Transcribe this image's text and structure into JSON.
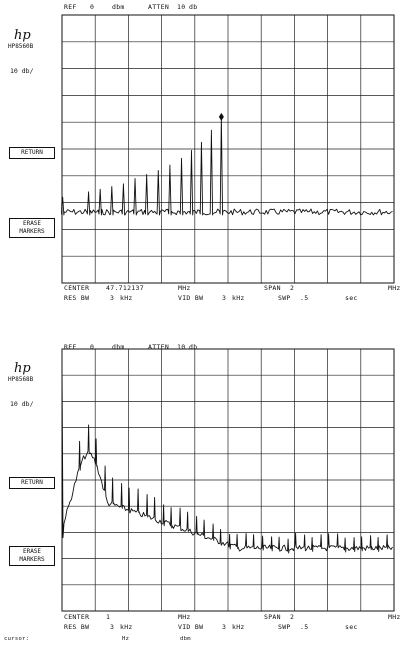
{
  "screens": [
    {
      "ref_label": "REF",
      "ref_value": "0",
      "ref_unit": "dbm",
      "atten_label": "ATTEN",
      "atten_value": "10",
      "atten_unit": "db",
      "logo": "hp",
      "model": "HP8560B",
      "scale": "10 db/",
      "softkeys": [
        {
          "label": "RETURN"
        },
        {
          "label": "ERASE MARKERS"
        }
      ],
      "center_label": "CENTER",
      "center_value": "47.712137",
      "center_unit": "MHz",
      "span_label": "SPAN",
      "span_value": "2",
      "span_unit": "MHz",
      "rbw_label": "RES BW",
      "rbw_value": "3",
      "rbw_unit": "kHz",
      "vbw_label": "VID BW",
      "vbw_value": "3",
      "vbw_unit": "kHz",
      "sweep_label": "SWP",
      "sweep_value": ".5",
      "sweep_unit": "sec",
      "trace": {
        "x_range_mhz": [
          46.712137,
          48.712137
        ],
        "y_range_div_below_ref": [
          0,
          10
        ],
        "noise_floor_div": 7.35,
        "spikes": [
          {
            "offset_div": -4.98,
            "level_div": 6.8
          },
          {
            "offset_div": -4.6,
            "level_div": 6.7
          },
          {
            "offset_div": -4.2,
            "level_div": 6.6
          },
          {
            "offset_div": -3.85,
            "level_div": 6.5
          },
          {
            "offset_div": -3.5,
            "level_div": 6.4
          },
          {
            "offset_div": -3.15,
            "level_div": 6.3
          },
          {
            "offset_div": -2.8,
            "level_div": 6.1
          },
          {
            "offset_div": -2.45,
            "level_div": 5.95
          },
          {
            "offset_div": -2.1,
            "level_div": 5.8
          },
          {
            "offset_div": -1.75,
            "level_div": 5.6
          },
          {
            "offset_div": -1.4,
            "level_div": 5.35
          },
          {
            "offset_div": -1.1,
            "level_div": 5.05
          },
          {
            "offset_div": -0.8,
            "level_div": 4.75
          },
          {
            "offset_div": -0.5,
            "level_div": 4.3
          },
          {
            "offset_div": -0.2,
            "level_div": 3.8
          }
        ],
        "marker_offset_div": -0.2
      }
    },
    {
      "ref_label": "REF",
      "ref_value": "0",
      "ref_unit": "dbm",
      "atten_label": "ATTEN",
      "atten_value": "10",
      "atten_unit": "db",
      "logo": "hp",
      "model": "HP8568B",
      "scale": "10 db/",
      "softkeys": [
        {
          "label": "RETURN"
        },
        {
          "label": "ERASE MARKERS"
        }
      ],
      "center_label": "CENTER",
      "center_value": "1",
      "center_unit": "MHz",
      "span_label": "SPAN",
      "span_value": "2",
      "span_unit": "MHz",
      "rbw_label": "RES BW",
      "rbw_value": "3",
      "rbw_unit": "kHz",
      "vbw_label": "VID BW",
      "vbw_value": "3",
      "vbw_unit": "kHz",
      "sweep_label": "SWP",
      "sweep_value": ".5",
      "sweep_unit": "sec",
      "trace": {
        "x_range_mhz": [
          0,
          2
        ],
        "y_range_div_below_ref": [
          0,
          10
        ],
        "noise_floor_div": 7.6,
        "spike_spacing_div": 0.25,
        "hump_peak_div": 4.0,
        "hump_center_offset_div": -4.2
      }
    }
  ],
  "cursor_label": "cursor:",
  "cursor_freq_unit": "Hz",
  "cursor_amp_unit": "dbm"
}
